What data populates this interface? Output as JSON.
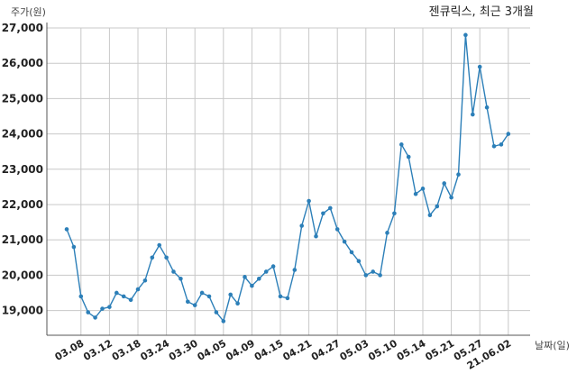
{
  "chart_data": {
    "type": "line",
    "title": "젠큐릭스, 최근 3개월",
    "ylabel": "주가(원)",
    "xlabel": "날짜(일)",
    "ylim": [
      18300,
      27000
    ],
    "yticks": [
      19000,
      20000,
      21000,
      22000,
      23000,
      24000,
      25000,
      26000,
      27000
    ],
    "ytick_labels": [
      "19,000",
      "20,000",
      "21,000",
      "22,000",
      "23,000",
      "24,000",
      "25,000",
      "26,000",
      "27,000"
    ],
    "xtick_labels": [
      "03.08",
      "03.12",
      "03.18",
      "03.24",
      "03.30",
      "04.05",
      "04.09",
      "04.15",
      "04.21",
      "04.27",
      "05.03",
      "05.10",
      "05.14",
      "05.21",
      "05.27",
      "21.06.02"
    ],
    "xtick_index": [
      2,
      6,
      10,
      14,
      18,
      22,
      26,
      30,
      34,
      38,
      42,
      46,
      50,
      54,
      58,
      62
    ],
    "grid": true,
    "values": [
      21300,
      20800,
      19400,
      18950,
      18800,
      19050,
      19100,
      19500,
      19400,
      19300,
      19600,
      19850,
      20500,
      20850,
      20500,
      20100,
      19900,
      19250,
      19150,
      19500,
      19400,
      18950,
      18700,
      19450,
      19200,
      19950,
      19700,
      19900,
      20100,
      20250,
      19400,
      19350,
      20150,
      21400,
      22100,
      21100,
      21750,
      21900,
      21300,
      20950,
      20650,
      20400,
      20000,
      20100,
      20000,
      21200,
      21750,
      23700,
      23350,
      22300,
      22450,
      21700,
      21950,
      22600,
      22200,
      22850,
      26800,
      24550,
      25900,
      24750,
      23650,
      23700,
      24000
    ]
  }
}
